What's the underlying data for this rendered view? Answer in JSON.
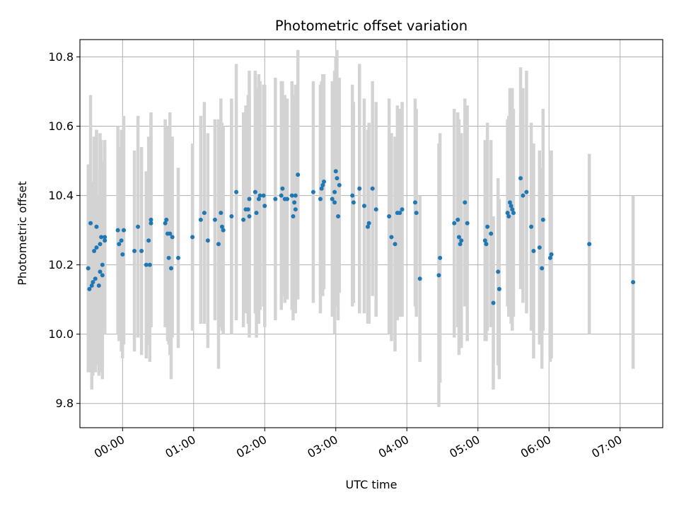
{
  "chart_data": {
    "type": "scatter",
    "title": "Photometric offset variation",
    "xlabel": "UTC time",
    "ylabel": "Photometric offset",
    "xlim": [
      "23:24",
      "07:36"
    ],
    "ylim": [
      9.73,
      10.85
    ],
    "x_ticks": [
      "00:00",
      "01:00",
      "02:00",
      "03:00",
      "04:00",
      "05:00",
      "06:00",
      "07:00"
    ],
    "y_ticks": [
      "9.8",
      "10.0",
      "10.2",
      "10.4",
      "10.6",
      "10.8"
    ],
    "grid": true,
    "point_color": "#1f77b4",
    "errorbar_color": "#d3d3d3",
    "series": [
      {
        "points": [
          {
            "x": "23:31",
            "y": 10.19,
            "err": 0.3
          },
          {
            "x": "23:32",
            "y": 10.13,
            "err": 0.24
          },
          {
            "x": "23:33",
            "y": 10.32,
            "err": 0.37
          },
          {
            "x": "23:34",
            "y": 10.14,
            "err": 0.3
          },
          {
            "x": "23:35",
            "y": 10.15,
            "err": 0.27
          },
          {
            "x": "23:36",
            "y": 10.24,
            "err": 0.33
          },
          {
            "x": "23:37",
            "y": 10.16,
            "err": 0.27
          },
          {
            "x": "23:38",
            "y": 10.25,
            "err": 0.34
          },
          {
            "x": "23:38",
            "y": 10.31,
            "err": 0.28
          },
          {
            "x": "23:40",
            "y": 10.14,
            "err": 0.26
          },
          {
            "x": "23:41",
            "y": 10.18,
            "err": 0.29
          },
          {
            "x": "23:41",
            "y": 10.26,
            "err": 0.32
          },
          {
            "x": "23:42",
            "y": 10.28,
            "err": 0.28
          },
          {
            "x": "23:43",
            "y": 10.17,
            "err": 0.3
          },
          {
            "x": "23:43",
            "y": 10.2,
            "err": 0.3
          },
          {
            "x": "23:45",
            "y": 10.27,
            "err": 0.26
          },
          {
            "x": "23:45",
            "y": 10.28,
            "err": 0.28
          },
          {
            "x": "23:56",
            "y": 10.3,
            "err": 0.3
          },
          {
            "x": "23:57",
            "y": 10.26,
            "err": 0.28
          },
          {
            "x": "23:59",
            "y": 10.27,
            "err": 0.32
          },
          {
            "x": "00:00",
            "y": 10.23,
            "err": 0.3
          },
          {
            "x": "00:01",
            "y": 10.3,
            "err": 0.33
          },
          {
            "x": "00:10",
            "y": 10.24,
            "err": 0.29
          },
          {
            "x": "00:13",
            "y": 10.31,
            "err": 0.32
          },
          {
            "x": "00:16",
            "y": 10.24,
            "err": 0.3
          },
          {
            "x": "00:20",
            "y": 10.2,
            "err": 0.27
          },
          {
            "x": "00:22",
            "y": 10.27,
            "err": 0.3
          },
          {
            "x": "00:23",
            "y": 10.2,
            "err": 0.28
          },
          {
            "x": "00:24",
            "y": 10.33,
            "err": 0.31
          },
          {
            "x": "00:24",
            "y": 10.32,
            "err": 0.3
          },
          {
            "x": "00:36",
            "y": 10.32,
            "err": 0.3
          },
          {
            "x": "00:37",
            "y": 10.33,
            "err": 0.27
          },
          {
            "x": "00:38",
            "y": 10.29,
            "err": 0.31
          },
          {
            "x": "00:39",
            "y": 10.22,
            "err": 0.25
          },
          {
            "x": "00:40",
            "y": 10.29,
            "err": 0.35
          },
          {
            "x": "00:41",
            "y": 10.19,
            "err": 0.32
          },
          {
            "x": "00:42",
            "y": 10.28,
            "err": 0.29
          },
          {
            "x": "00:47",
            "y": 10.22,
            "err": 0.26
          },
          {
            "x": "00:59",
            "y": 10.28,
            "err": 0.27
          },
          {
            "x": "01:06",
            "y": 10.33,
            "err": 0.3
          },
          {
            "x": "01:09",
            "y": 10.35,
            "err": 0.32
          },
          {
            "x": "01:12",
            "y": 10.27,
            "err": 0.31
          },
          {
            "x": "01:18",
            "y": 10.33,
            "err": 0.29
          },
          {
            "x": "01:21",
            "y": 10.26,
            "err": 0.36
          },
          {
            "x": "01:23",
            "y": 10.35,
            "err": 0.33
          },
          {
            "x": "01:24",
            "y": 10.31,
            "err": 0.3
          },
          {
            "x": "01:25",
            "y": 10.3,
            "err": 0.3
          },
          {
            "x": "01:32",
            "y": 10.34,
            "err": 0.34
          },
          {
            "x": "01:36",
            "y": 10.41,
            "err": 0.37
          },
          {
            "x": "01:42",
            "y": 10.33,
            "err": 0.31
          },
          {
            "x": "01:44",
            "y": 10.36,
            "err": 0.3
          },
          {
            "x": "01:46",
            "y": 10.36,
            "err": 0.33
          },
          {
            "x": "01:47",
            "y": 10.34,
            "err": 0.35
          },
          {
            "x": "01:47",
            "y": 10.39,
            "err": 0.37
          },
          {
            "x": "01:52",
            "y": 10.41,
            "err": 0.35
          },
          {
            "x": "01:53",
            "y": 10.35,
            "err": 0.36
          },
          {
            "x": "01:55",
            "y": 10.39,
            "err": 0.36
          },
          {
            "x": "01:56",
            "y": 10.4,
            "err": 0.33
          },
          {
            "x": "01:59",
            "y": 10.4,
            "err": 0.32
          },
          {
            "x": "02:00",
            "y": 10.37,
            "err": 0.35
          },
          {
            "x": "02:09",
            "y": 10.39,
            "err": 0.35
          },
          {
            "x": "02:14",
            "y": 10.4,
            "err": 0.33
          },
          {
            "x": "02:15",
            "y": 10.42,
            "err": 0.31
          },
          {
            "x": "02:17",
            "y": 10.39,
            "err": 0.3
          },
          {
            "x": "02:19",
            "y": 10.39,
            "err": 0.29
          },
          {
            "x": "02:23",
            "y": 10.4,
            "err": 0.33
          },
          {
            "x": "02:24",
            "y": 10.34,
            "err": 0.3
          },
          {
            "x": "02:25",
            "y": 10.38,
            "err": 0.31
          },
          {
            "x": "02:26",
            "y": 10.4,
            "err": 0.32
          },
          {
            "x": "02:26",
            "y": 10.36,
            "err": 0.3
          },
          {
            "x": "02:28",
            "y": 10.46,
            "err": 0.36
          },
          {
            "x": "02:41",
            "y": 10.41,
            "err": 0.32
          },
          {
            "x": "02:47",
            "y": 10.39,
            "err": 0.33
          },
          {
            "x": "02:48",
            "y": 10.42,
            "err": 0.31
          },
          {
            "x": "02:49",
            "y": 10.43,
            "err": 0.32
          },
          {
            "x": "02:50",
            "y": 10.44,
            "err": 0.31
          },
          {
            "x": "02:57",
            "y": 10.39,
            "err": 0.34
          },
          {
            "x": "02:59",
            "y": 10.41,
            "err": 0.33
          },
          {
            "x": "02:59",
            "y": 10.38,
            "err": 0.38
          },
          {
            "x": "03:00",
            "y": 10.47,
            "err": 0.33
          },
          {
            "x": "03:01",
            "y": 10.45,
            "err": 0.37
          },
          {
            "x": "03:02",
            "y": 10.34,
            "err": 0.3
          },
          {
            "x": "03:03",
            "y": 10.43,
            "err": 0.31
          },
          {
            "x": "03:14",
            "y": 10.4,
            "err": 0.32
          },
          {
            "x": "03:15",
            "y": 10.38,
            "err": 0.29
          },
          {
            "x": "03:20",
            "y": 10.42,
            "err": 0.36
          },
          {
            "x": "03:24",
            "y": 10.37,
            "err": 0.31
          },
          {
            "x": "03:27",
            "y": 10.31,
            "err": 0.28
          },
          {
            "x": "03:28",
            "y": 10.32,
            "err": 0.29
          },
          {
            "x": "03:31",
            "y": 10.42,
            "err": 0.31
          },
          {
            "x": "03:34",
            "y": 10.36,
            "err": 0.31
          },
          {
            "x": "03:45",
            "y": 10.34,
            "err": 0.34
          },
          {
            "x": "03:47",
            "y": 10.28,
            "err": 0.3
          },
          {
            "x": "03:50",
            "y": 10.26,
            "err": 0.31
          },
          {
            "x": "03:52",
            "y": 10.35,
            "err": 0.31
          },
          {
            "x": "03:54",
            "y": 10.35,
            "err": 0.3
          },
          {
            "x": "03:56",
            "y": 10.36,
            "err": 0.31
          },
          {
            "x": "04:07",
            "y": 10.38,
            "err": 0.3
          },
          {
            "x": "04:08",
            "y": 10.35,
            "err": 0.3
          },
          {
            "x": "04:11",
            "y": 10.16,
            "err": 0.24
          },
          {
            "x": "04:27",
            "y": 10.17,
            "err": 0.38
          },
          {
            "x": "04:28",
            "y": 10.22,
            "err": 0.36
          },
          {
            "x": "04:40",
            "y": 10.32,
            "err": 0.33
          },
          {
            "x": "04:43",
            "y": 10.33,
            "err": 0.31
          },
          {
            "x": "04:44",
            "y": 10.28,
            "err": 0.34
          },
          {
            "x": "04:45",
            "y": 10.26,
            "err": 0.29
          },
          {
            "x": "04:46",
            "y": 10.27,
            "err": 0.31
          },
          {
            "x": "04:49",
            "y": 10.38,
            "err": 0.3
          },
          {
            "x": "04:51",
            "y": 10.32,
            "err": 0.34
          },
          {
            "x": "05:06",
            "y": 10.27,
            "err": 0.29
          },
          {
            "x": "05:07",
            "y": 10.26,
            "err": 0.28
          },
          {
            "x": "05:08",
            "y": 10.31,
            "err": 0.3
          },
          {
            "x": "05:11",
            "y": 10.29,
            "err": 0.27
          },
          {
            "x": "05:13",
            "y": 10.09,
            "err": 0.25
          },
          {
            "x": "05:17",
            "y": 10.18,
            "err": 0.27
          },
          {
            "x": "05:18",
            "y": 10.13,
            "err": 0.26
          },
          {
            "x": "05:25",
            "y": 10.35,
            "err": 0.27
          },
          {
            "x": "05:26",
            "y": 10.34,
            "err": 0.29
          },
          {
            "x": "05:27",
            "y": 10.38,
            "err": 0.33
          },
          {
            "x": "05:28",
            "y": 10.37,
            "err": 0.34
          },
          {
            "x": "05:29",
            "y": 10.36,
            "err": 0.35
          },
          {
            "x": "05:30",
            "y": 10.35,
            "err": 0.3
          },
          {
            "x": "05:36",
            "y": 10.45,
            "err": 0.32
          },
          {
            "x": "05:38",
            "y": 10.4,
            "err": 0.31
          },
          {
            "x": "05:41",
            "y": 10.41,
            "err": 0.35
          },
          {
            "x": "05:45",
            "y": 10.31,
            "err": 0.3
          },
          {
            "x": "05:47",
            "y": 10.24,
            "err": 0.31
          },
          {
            "x": "05:52",
            "y": 10.25,
            "err": 0.28
          },
          {
            "x": "05:54",
            "y": 10.19,
            "err": 0.29
          },
          {
            "x": "05:55",
            "y": 10.33,
            "err": 0.32
          },
          {
            "x": "06:01",
            "y": 10.22,
            "err": 0.3
          },
          {
            "x": "06:02",
            "y": 10.23,
            "err": 0.3
          },
          {
            "x": "06:34",
            "y": 10.26,
            "err": 0.26
          },
          {
            "x": "07:11",
            "y": 10.15,
            "err": 0.25
          }
        ]
      }
    ]
  }
}
